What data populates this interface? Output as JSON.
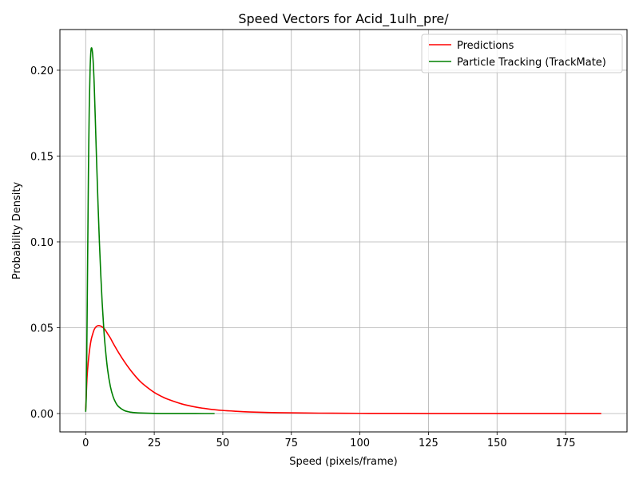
{
  "chart_data": {
    "type": "line",
    "title": "Speed Vectors for Acid_1ulh_pre/",
    "xlabel": "Speed (pixels/frame)",
    "ylabel": "Probability Density",
    "xlim": [
      -9.4,
      197.4
    ],
    "ylim": [
      -0.0107,
      0.2237
    ],
    "x_ticks": [
      0,
      25,
      50,
      75,
      100,
      125,
      150,
      175
    ],
    "y_ticks": [
      0.0,
      0.05,
      0.1,
      0.15,
      0.2
    ],
    "x_tick_labels": [
      "0",
      "25",
      "50",
      "75",
      "100",
      "125",
      "150",
      "175"
    ],
    "y_tick_labels": [
      "0.00",
      "0.05",
      "0.10",
      "0.15",
      "0.20"
    ],
    "grid": true,
    "legend_position": "upper right",
    "series": [
      {
        "name": "Predictions",
        "color": "#ff0000",
        "x": [
          0,
          0.5,
          1,
          1.5,
          2,
          2.5,
          3,
          3.5,
          4,
          4.5,
          5,
          6,
          7,
          8,
          9,
          10,
          12,
          14,
          16,
          18,
          20,
          22,
          25,
          28,
          30,
          35,
          40,
          45,
          50,
          55,
          60,
          70,
          80,
          90,
          100,
          110,
          125,
          150,
          175,
          188
        ],
        "y": [
          0.002,
          0.021,
          0.031,
          0.038,
          0.043,
          0.046,
          0.0485,
          0.05,
          0.0508,
          0.0512,
          0.0512,
          0.0505,
          0.049,
          0.0465,
          0.044,
          0.041,
          0.0355,
          0.0305,
          0.026,
          0.022,
          0.0185,
          0.0158,
          0.0123,
          0.0097,
          0.0083,
          0.0056,
          0.0038,
          0.0026,
          0.0018,
          0.0013,
          0.0009,
          0.0005,
          0.0003,
          0.00018,
          0.00012,
          8e-05,
          4e-05,
          2e-05,
          1e-05,
          1e-05
        ]
      },
      {
        "name": "Particle Tracking (TrackMate)",
        "color": "#008000",
        "x": [
          0,
          0.2,
          0.4,
          0.6,
          0.8,
          1.0,
          1.3,
          1.6,
          1.9,
          2.2,
          2.5,
          2.8,
          3.1,
          3.5,
          4.0,
          4.5,
          5,
          5.5,
          6,
          6.5,
          7,
          8,
          9,
          10,
          11,
          12,
          14,
          16,
          18,
          20,
          25,
          30,
          35,
          40,
          47
        ],
        "y": [
          0.001,
          0.01,
          0.035,
          0.07,
          0.105,
          0.14,
          0.178,
          0.2,
          0.211,
          0.213,
          0.21,
          0.203,
          0.192,
          0.172,
          0.146,
          0.122,
          0.1,
          0.081,
          0.065,
          0.052,
          0.041,
          0.0255,
          0.0158,
          0.0098,
          0.0062,
          0.004,
          0.0018,
          0.0009,
          0.0005,
          0.0003,
          8e-05,
          3e-05,
          1e-05,
          5e-06,
          0.0
        ]
      }
    ]
  }
}
